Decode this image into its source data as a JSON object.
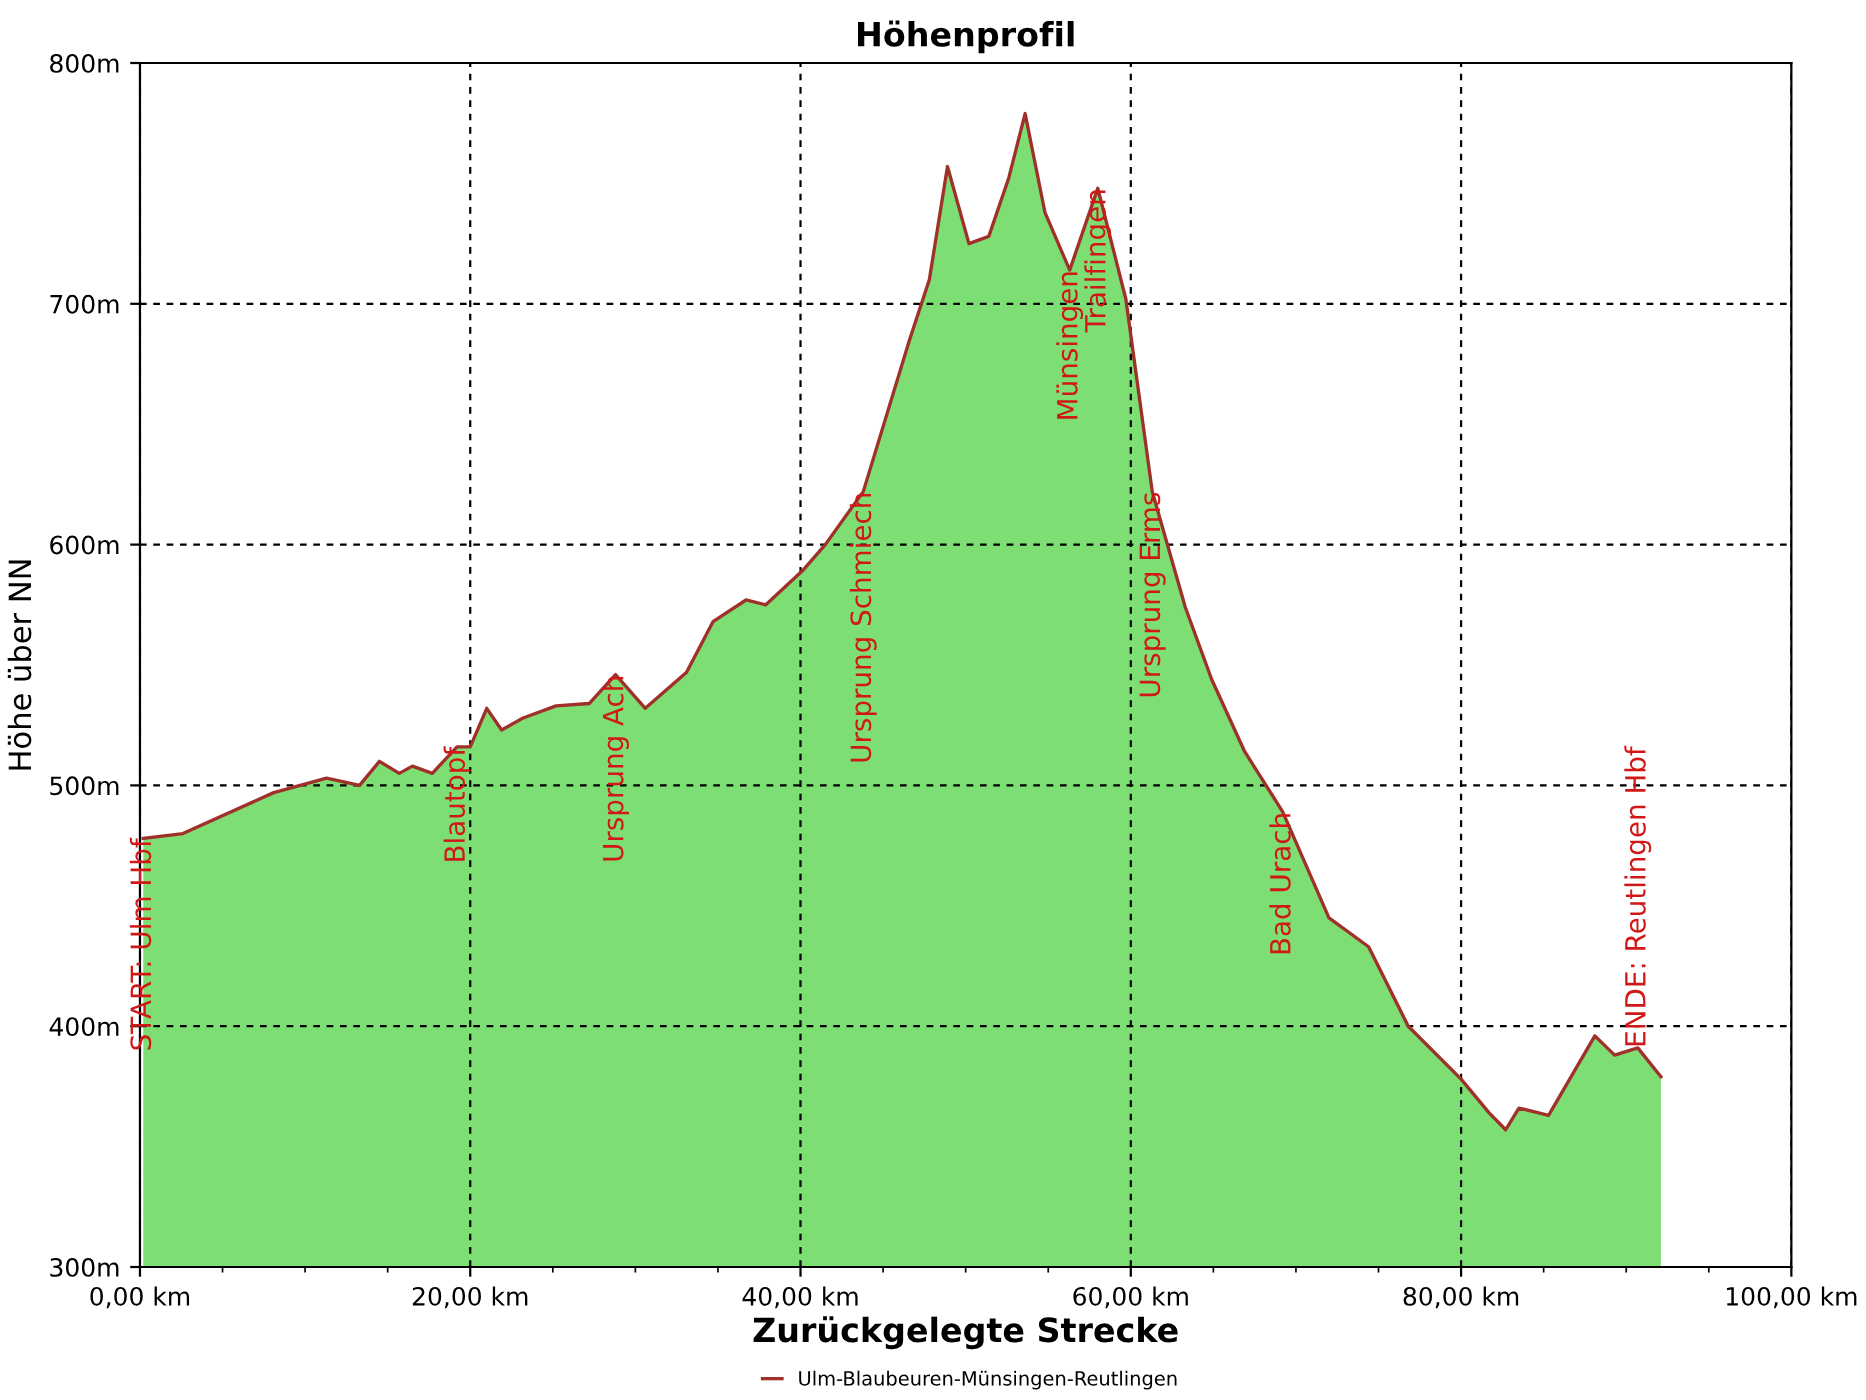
{
  "chart_data": {
    "type": "area",
    "title": "Höhenprofil",
    "xlabel": "Zurückgelegte Strecke",
    "ylabel": "Höhe über NN",
    "x": [
      0.2,
      2.6,
      8.1,
      11.3,
      13.3,
      14.5,
      15.7,
      16.5,
      17.7,
      19.2,
      20.0,
      21.0,
      21.9,
      23.2,
      25.2,
      27.2,
      28.8,
      30.6,
      33.1,
      34.7,
      36.7,
      37.9,
      40.1,
      41.5,
      43.8,
      46.6,
      47.8,
      48.9,
      50.2,
      51.4,
      52.6,
      53.6,
      54.8,
      56.3,
      58.0,
      59.7,
      61.3,
      63.3,
      64.9,
      66.9,
      69.2,
      72.0,
      74.4,
      76.8,
      80.0,
      81.7,
      82.7,
      83.5,
      85.3,
      88.1,
      89.3,
      90.7,
      92.1
    ],
    "series": [
      {
        "color": "#7ddf73",
        "values": [
          478,
          480,
          497,
          503,
          500,
          510,
          505,
          508,
          505,
          516,
          516,
          532,
          523,
          528,
          533,
          534,
          546,
          532,
          547,
          568,
          577,
          575,
          589,
          600,
          622,
          685,
          710,
          757,
          725,
          728,
          752,
          779,
          738,
          714,
          748,
          702,
          622,
          574,
          544,
          514,
          489,
          445,
          433,
          400,
          378,
          364,
          357,
          366,
          363,
          396,
          388,
          391,
          379
        ]
      },
      {
        "type": "line",
        "name": "Ulm-Blaubeuren-Münsingen-Reutlingen",
        "color": "#a0302a",
        "values": [
          478,
          480,
          497,
          503,
          500,
          510,
          505,
          508,
          505,
          516,
          516,
          532,
          523,
          528,
          533,
          534,
          546,
          532,
          547,
          568,
          577,
          575,
          589,
          600,
          622,
          685,
          710,
          757,
          725,
          728,
          752,
          779,
          738,
          714,
          748,
          702,
          622,
          574,
          544,
          514,
          489,
          445,
          433,
          400,
          378,
          364,
          357,
          366,
          363,
          396,
          388,
          391,
          379
        ]
      }
    ],
    "xlim": [
      0,
      100
    ],
    "ylim": [
      300,
      800
    ],
    "xticks": [
      {
        "value": 0,
        "label": "0,00 km"
      },
      {
        "value": 20,
        "label": "20,00 km"
      },
      {
        "value": 40,
        "label": "40,00 km"
      },
      {
        "value": 60,
        "label": "60,00 km"
      },
      {
        "value": 80,
        "label": "80,00 km"
      },
      {
        "value": 100,
        "label": "100,00 km"
      }
    ],
    "yticks": [
      {
        "value": 300,
        "label": "300m"
      },
      {
        "value": 400,
        "label": "400m"
      },
      {
        "value": 500,
        "label": "500m"
      },
      {
        "value": 600,
        "label": "600m"
      },
      {
        "value": 700,
        "label": "700m"
      },
      {
        "value": 800,
        "label": "800m"
      }
    ],
    "grid": true,
    "legend": "bottom",
    "annotations": [
      {
        "text": "START: Ulm Hbf",
        "x": 0.2,
        "y": 478
      },
      {
        "text": "Blautopf",
        "x": 19.2,
        "y": 516
      },
      {
        "text": "Ursprung Ach",
        "x": 28.8,
        "y": 546
      },
      {
        "text": "Ursprung Schmiech",
        "x": 43.8,
        "y": 622
      },
      {
        "text": "Münsingen",
        "x": 56.3,
        "y": 714
      },
      {
        "text": "Trailfingen",
        "x": 58.0,
        "y": 748
      },
      {
        "text": "Ursprung Erms",
        "x": 61.3,
        "y": 622
      },
      {
        "text": "Bad Urach",
        "x": 69.2,
        "y": 489
      },
      {
        "text": "ENDE: Reutlingen Hbf",
        "x": 90.7,
        "y": 391
      }
    ]
  }
}
